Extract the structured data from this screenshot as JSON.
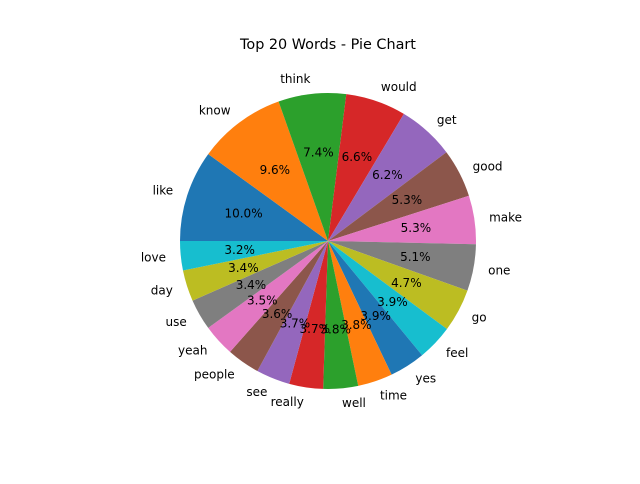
{
  "chart_data": {
    "type": "pie",
    "title": "Top 20 Words - Pie Chart",
    "start_angle_deg": 180,
    "direction": "clockwise",
    "slices": [
      {
        "label": "like",
        "pct": 10.0,
        "pct_text": "10.0%",
        "color": "#1f77b4"
      },
      {
        "label": "know",
        "pct": 9.6,
        "pct_text": "9.6%",
        "color": "#ff7f0e"
      },
      {
        "label": "think",
        "pct": 7.4,
        "pct_text": "7.4%",
        "color": "#2ca02c"
      },
      {
        "label": "would",
        "pct": 6.6,
        "pct_text": "6.6%",
        "color": "#d62728"
      },
      {
        "label": "get",
        "pct": 6.2,
        "pct_text": "6.2%",
        "color": "#9467bd"
      },
      {
        "label": "good",
        "pct": 5.3,
        "pct_text": "5.3%",
        "color": "#8c564b"
      },
      {
        "label": "make",
        "pct": 5.3,
        "pct_text": "5.3%",
        "color": "#e377c2"
      },
      {
        "label": "one",
        "pct": 5.1,
        "pct_text": "5.1%",
        "color": "#7f7f7f"
      },
      {
        "label": "go",
        "pct": 4.7,
        "pct_text": "4.7%",
        "color": "#bcbd22"
      },
      {
        "label": "feel",
        "pct": 3.9,
        "pct_text": "3.9%",
        "color": "#17becf"
      },
      {
        "label": "yes",
        "pct": 3.9,
        "pct_text": "3.9%",
        "color": "#1f77b4"
      },
      {
        "label": "time",
        "pct": 3.8,
        "pct_text": "3.8%",
        "color": "#ff7f0e"
      },
      {
        "label": "well",
        "pct": 3.8,
        "pct_text": "3.8%",
        "color": "#2ca02c"
      },
      {
        "label": "really",
        "pct": 3.7,
        "pct_text": "3.7%",
        "color": "#d62728"
      },
      {
        "label": "see",
        "pct": 3.7,
        "pct_text": "3.7%",
        "color": "#9467bd"
      },
      {
        "label": "people",
        "pct": 3.6,
        "pct_text": "3.6%",
        "color": "#8c564b"
      },
      {
        "label": "yeah",
        "pct": 3.5,
        "pct_text": "3.5%",
        "color": "#e377c2"
      },
      {
        "label": "use",
        "pct": 3.4,
        "pct_text": "3.4%",
        "color": "#7f7f7f"
      },
      {
        "label": "day",
        "pct": 3.4,
        "pct_text": "3.4%",
        "color": "#bcbd22"
      },
      {
        "label": "love",
        "pct": 3.2,
        "pct_text": "3.2%",
        "color": "#17becf"
      }
    ]
  }
}
